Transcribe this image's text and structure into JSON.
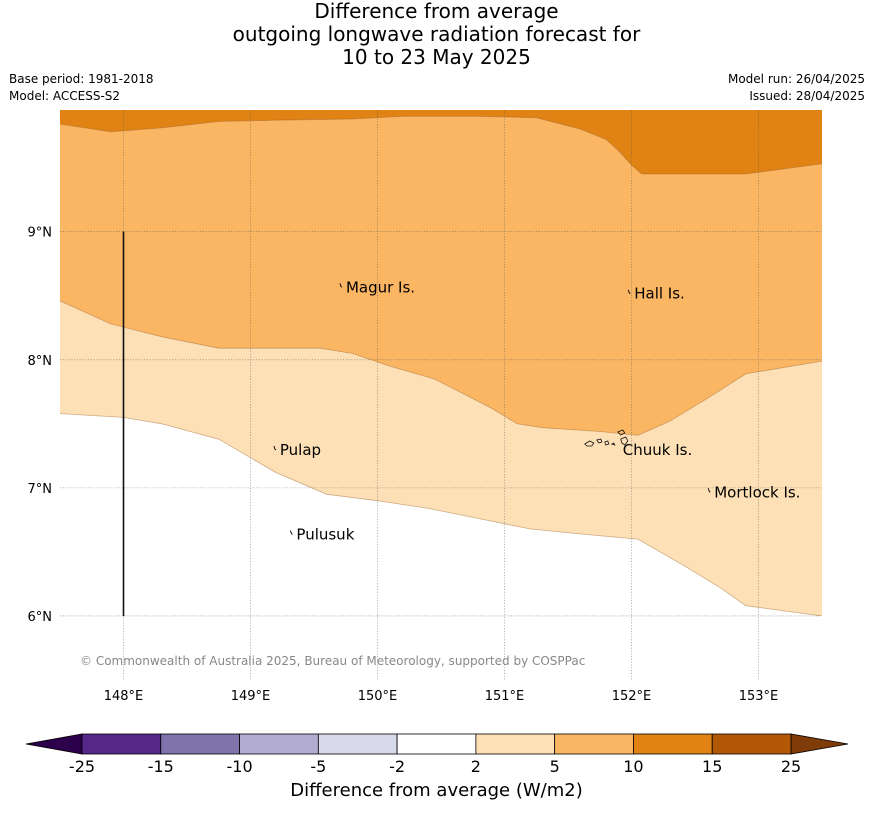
{
  "title_lines": [
    "Difference from average",
    "outgoing longwave radiation forecast for",
    "10 to 23 May 2025"
  ],
  "meta_left": [
    "Base period: 1981-2018",
    "Model: ACCESS-S2"
  ],
  "meta_right": [
    "Model run: 26/04/2025",
    "Issued: 28/04/2025"
  ],
  "map": {
    "lon_range": [
      147.5,
      153.5
    ],
    "lat_range": [
      5.5,
      9.95
    ],
    "lon_ticks": [
      {
        "lon": 148,
        "label": "148°E"
      },
      {
        "lon": 149,
        "label": "149°E"
      },
      {
        "lon": 150,
        "label": "150°E"
      },
      {
        "lon": 151,
        "label": "151°E"
      },
      {
        "lon": 152,
        "label": "152°E"
      },
      {
        "lon": 153,
        "label": "153°E"
      }
    ],
    "lat_ticks": [
      {
        "lat": 9,
        "label": "9°N"
      },
      {
        "lat": 8,
        "label": "8°N"
      },
      {
        "lat": 7,
        "label": "7°N"
      },
      {
        "lat": 6,
        "label": "6°N"
      }
    ],
    "gridlines": true,
    "fill_colors": {
      "band_2_5": "#fde0b6",
      "band_5_10": "#fbb663",
      "band_10_15": "#e08214"
    },
    "contour_2": [
      [
        147.5,
        7.58
      ],
      [
        148,
        7.55
      ],
      [
        148.3,
        7.5
      ],
      [
        148.75,
        7.38
      ],
      [
        149.2,
        7.12
      ],
      [
        149.6,
        6.95
      ],
      [
        150,
        6.9
      ],
      [
        150.4,
        6.84
      ],
      [
        150.8,
        6.76
      ],
      [
        151.2,
        6.68
      ],
      [
        151.6,
        6.64
      ],
      [
        152.05,
        6.6
      ],
      [
        152.4,
        6.4
      ],
      [
        152.7,
        6.22
      ],
      [
        152.9,
        6.08
      ],
      [
        153.5,
        6.0
      ]
    ],
    "contour_5": [
      [
        147.5,
        8.46
      ],
      [
        147.9,
        8.28
      ],
      [
        148.3,
        8.18
      ],
      [
        148.75,
        8.09
      ],
      [
        149.2,
        8.09
      ],
      [
        149.55,
        8.09
      ],
      [
        149.8,
        8.05
      ],
      [
        150.1,
        7.95
      ],
      [
        150.45,
        7.85
      ],
      [
        150.9,
        7.62
      ],
      [
        151.1,
        7.5
      ],
      [
        151.3,
        7.47
      ],
      [
        151.75,
        7.44
      ],
      [
        152.05,
        7.41
      ],
      [
        152.3,
        7.52
      ],
      [
        152.6,
        7.7
      ],
      [
        152.9,
        7.89
      ],
      [
        153.5,
        7.99
      ]
    ],
    "contour_10": [
      [
        147.5,
        9.84
      ],
      [
        147.9,
        9.78
      ],
      [
        148.3,
        9.81
      ],
      [
        148.75,
        9.86
      ],
      [
        149.2,
        9.87
      ],
      [
        149.8,
        9.88
      ],
      [
        150.2,
        9.9
      ],
      [
        150.8,
        9.9
      ],
      [
        151.25,
        9.89
      ],
      [
        151.6,
        9.8
      ],
      [
        151.8,
        9.72
      ],
      [
        151.9,
        9.63
      ],
      [
        152.0,
        9.52
      ],
      [
        152.08,
        9.45
      ],
      [
        152.5,
        9.45
      ],
      [
        152.9,
        9.45
      ],
      [
        153.5,
        9.53
      ]
    ],
    "meridian_line": {
      "lon": 148,
      "lat_from": 6.0,
      "lat_to": 9.0
    },
    "islands": [
      {
        "name": "Magur Is.",
        "lon": 149.72,
        "lat": 8.55
      },
      {
        "name": "Hall Is.",
        "lon": 151.99,
        "lat": 8.5
      },
      {
        "name": "Pulap",
        "lon": 149.2,
        "lat": 7.28
      },
      {
        "name": "Chuuk Is.",
        "lon": 151.9,
        "lat": 7.28
      },
      {
        "name": "Mortlock Is.",
        "lon": 152.62,
        "lat": 6.95
      },
      {
        "name": "Pulusuk",
        "lon": 149.33,
        "lat": 6.62
      }
    ],
    "copyright": "© Commonwealth of Australia 2025, Bureau of Meteorology, supported by COSPPac"
  },
  "colorbar": {
    "title": "Difference from average (W/m2)",
    "bounds": [
      "-25",
      "-15",
      "-10",
      "-5",
      "-2",
      "2",
      "5",
      "10",
      "15",
      "25"
    ],
    "colors": [
      "#542788",
      "#8073ac",
      "#b2abd2",
      "#d8daeb",
      "#ffffff",
      "#fde0b6",
      "#fbb663",
      "#e08214",
      "#b35806"
    ],
    "under_color": "#2d004b",
    "over_color": "#7f3b08"
  }
}
